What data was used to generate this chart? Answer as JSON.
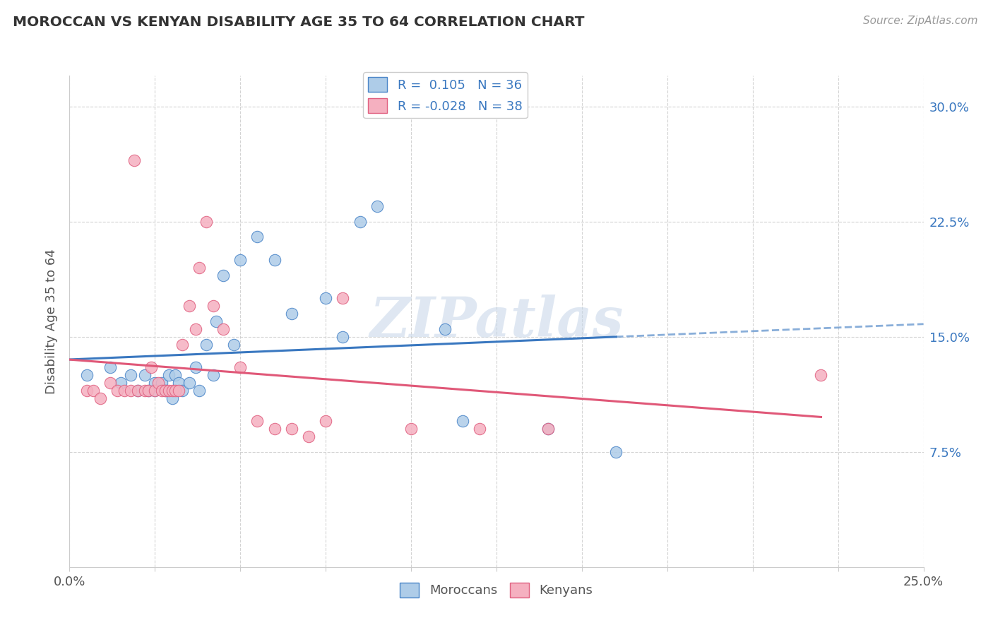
{
  "title": "MOROCCAN VS KENYAN DISABILITY AGE 35 TO 64 CORRELATION CHART",
  "source": "Source: ZipAtlas.com",
  "ylabel_label": "Disability Age 35 to 64",
  "xlim": [
    0.0,
    0.25
  ],
  "ylim": [
    0.0,
    0.32
  ],
  "moroccan_color": "#aecce8",
  "kenyan_color": "#f5b0c0",
  "moroccan_edge_color": "#4a85c8",
  "kenyan_edge_color": "#e06080",
  "moroccan_line_color": "#3a78c0",
  "kenyan_line_color": "#e05878",
  "r_moroccan": 0.105,
  "r_kenyan": -0.028,
  "n_moroccan": 36,
  "n_kenyan": 38,
  "watermark": "ZIPatlas",
  "moroccan_scatter_x": [
    0.005,
    0.012,
    0.015,
    0.018,
    0.02,
    0.022,
    0.023,
    0.025,
    0.025,
    0.027,
    0.028,
    0.029,
    0.03,
    0.031,
    0.032,
    0.033,
    0.035,
    0.037,
    0.038,
    0.04,
    0.042,
    0.043,
    0.045,
    0.048,
    0.05,
    0.055,
    0.06,
    0.065,
    0.075,
    0.08,
    0.085,
    0.09,
    0.11,
    0.115,
    0.14,
    0.16
  ],
  "moroccan_scatter_y": [
    0.125,
    0.13,
    0.12,
    0.125,
    0.115,
    0.125,
    0.115,
    0.12,
    0.115,
    0.12,
    0.115,
    0.125,
    0.11,
    0.125,
    0.12,
    0.115,
    0.12,
    0.13,
    0.115,
    0.145,
    0.125,
    0.16,
    0.19,
    0.145,
    0.2,
    0.215,
    0.2,
    0.165,
    0.175,
    0.15,
    0.225,
    0.235,
    0.155,
    0.095,
    0.09,
    0.075
  ],
  "kenyan_scatter_x": [
    0.005,
    0.007,
    0.009,
    0.012,
    0.014,
    0.016,
    0.018,
    0.019,
    0.02,
    0.022,
    0.023,
    0.024,
    0.025,
    0.026,
    0.027,
    0.028,
    0.029,
    0.03,
    0.031,
    0.032,
    0.033,
    0.035,
    0.037,
    0.038,
    0.04,
    0.042,
    0.045,
    0.05,
    0.055,
    0.06,
    0.065,
    0.07,
    0.075,
    0.08,
    0.1,
    0.12,
    0.14,
    0.22
  ],
  "kenyan_scatter_y": [
    0.115,
    0.115,
    0.11,
    0.12,
    0.115,
    0.115,
    0.115,
    0.265,
    0.115,
    0.115,
    0.115,
    0.13,
    0.115,
    0.12,
    0.115,
    0.115,
    0.115,
    0.115,
    0.115,
    0.115,
    0.145,
    0.17,
    0.155,
    0.195,
    0.225,
    0.17,
    0.155,
    0.13,
    0.095,
    0.09,
    0.09,
    0.085,
    0.095,
    0.175,
    0.09,
    0.09,
    0.09,
    0.125
  ]
}
